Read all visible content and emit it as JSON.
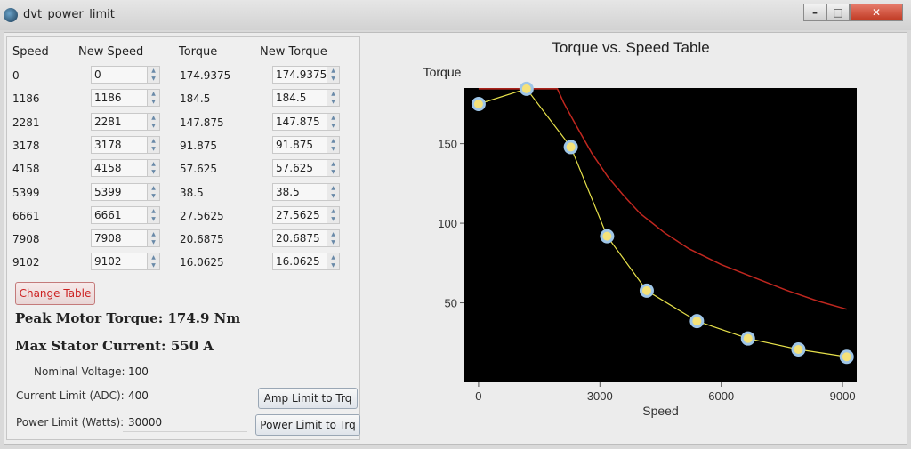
{
  "window": {
    "title": "dvt_power_limit",
    "min_icon": "minimize-icon",
    "max_icon": "maximize-icon",
    "close_icon": "close-icon"
  },
  "table": {
    "headers": {
      "speed": "Speed",
      "new_speed": "New Speed",
      "torque": "Torque",
      "new_torque": "New Torque"
    },
    "rows": [
      {
        "speed": "0",
        "new_speed": "0",
        "torque": "174.9375",
        "new_torque": "174.9375"
      },
      {
        "speed": "1186",
        "new_speed": "1186",
        "torque": "184.5",
        "new_torque": "184.5"
      },
      {
        "speed": "2281",
        "new_speed": "2281",
        "torque": "147.875",
        "new_torque": "147.875"
      },
      {
        "speed": "3178",
        "new_speed": "3178",
        "torque": "91.875",
        "new_torque": "91.875"
      },
      {
        "speed": "4158",
        "new_speed": "4158",
        "torque": "57.625",
        "new_torque": "57.625"
      },
      {
        "speed": "5399",
        "new_speed": "5399",
        "torque": "38.5",
        "new_torque": "38.5"
      },
      {
        "speed": "6661",
        "new_speed": "6661",
        "torque": "27.5625",
        "new_torque": "27.5625"
      },
      {
        "speed": "7908",
        "new_speed": "7908",
        "torque": "20.6875",
        "new_torque": "20.6875"
      },
      {
        "speed": "9102",
        "new_speed": "9102",
        "torque": "16.0625",
        "new_torque": "16.0625"
      }
    ]
  },
  "controls": {
    "change_table": "Change Table",
    "peak_torque": "Peak Motor Torque: 174.9 Nm",
    "max_current": "Max Stator Current: 550 A",
    "nominal_voltage_label": "Nominal Voltage:",
    "nominal_voltage_value": "100",
    "current_limit_label": "Current Limit (ADC):",
    "current_limit_value": "400",
    "power_limit_label": "Power Limit (Watts):",
    "power_limit_value": "30000",
    "amp_limit_btn": "Amp Limit to Trq",
    "power_limit_btn": "Power Limit to Trq"
  },
  "chart_data": {
    "type": "line",
    "title": "Torque vs. Speed Table",
    "xlabel": "Speed",
    "ylabel": "Torque",
    "xlim": [
      -350,
      9350
    ],
    "ylim": [
      0,
      185
    ],
    "xticks": [
      0,
      3000,
      6000,
      9000
    ],
    "yticks": [
      50,
      100,
      150
    ],
    "background": "#000000",
    "series": [
      {
        "color": "#e6e04a",
        "marker_color": "#f5e27a",
        "x": [
          0,
          1186,
          2281,
          3178,
          4158,
          5399,
          6661,
          7908,
          9102
        ],
        "y": [
          174.9375,
          184.5,
          147.875,
          91.875,
          57.625,
          38.5,
          27.5625,
          20.6875,
          16.0625
        ]
      },
      {
        "color": "#c0271f",
        "x": [
          0,
          1200,
          1950,
          2100,
          2400,
          2800,
          3200,
          3600,
          4000,
          4600,
          5200,
          6000,
          6800,
          7600,
          8400,
          9100
        ],
        "y": [
          184.5,
          184.5,
          184.5,
          176,
          162,
          144,
          129,
          117,
          106,
          94,
          84,
          74,
          66,
          58,
          51,
          46
        ]
      }
    ]
  }
}
